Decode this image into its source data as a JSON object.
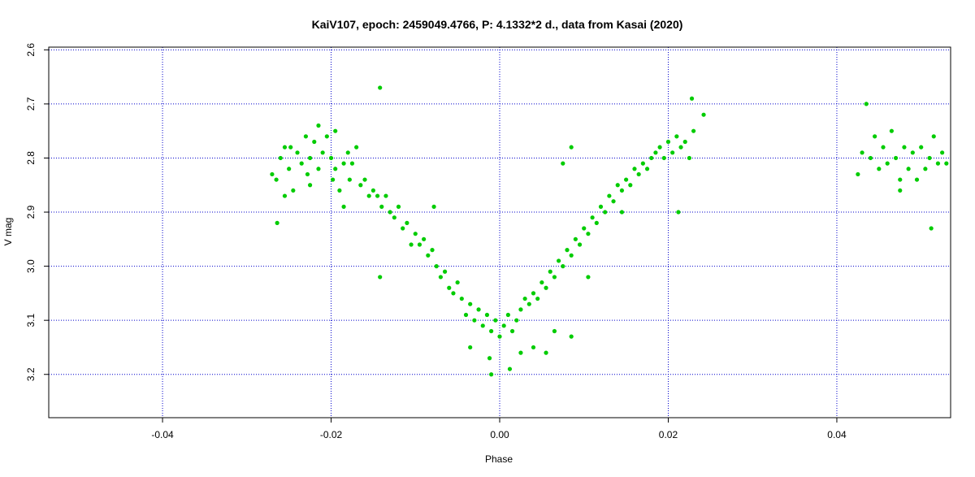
{
  "chart_data": {
    "type": "scatter",
    "title": "KaiV107, epoch: 2459049.4766, P: 4.1332*2 d., data from Kasai (2020)",
    "xlabel": "Phase",
    "ylabel": "V mag",
    "xlim": [
      -0.0535,
      0.0535
    ],
    "ylim": [
      3.28,
      2.595
    ],
    "y_inverted": true,
    "x_ticks": [
      -0.04,
      -0.02,
      0.0,
      0.02,
      0.04
    ],
    "x_tick_labels": [
      "-0.04",
      "-0.02",
      "0.00",
      "0.02",
      "0.04"
    ],
    "y_ticks": [
      2.6,
      2.7,
      2.8,
      2.9,
      3.0,
      3.1,
      3.2
    ],
    "y_tick_labels": [
      "2.6",
      "2.7",
      "2.8",
      "2.9",
      "3.0",
      "3.1",
      "3.2"
    ],
    "grid": true,
    "grid_color": "#0000cc",
    "point_color": "#00cc00",
    "series": [
      {
        "points": [
          [
            -0.027,
            2.83
          ],
          [
            -0.0265,
            2.84
          ],
          [
            -0.026,
            2.8
          ],
          [
            -0.0255,
            2.87
          ],
          [
            -0.025,
            2.82
          ],
          [
            -0.0248,
            2.78
          ],
          [
            -0.0245,
            2.86
          ],
          [
            -0.024,
            2.79
          ],
          [
            -0.0235,
            2.81
          ],
          [
            -0.023,
            2.76
          ],
          [
            -0.0228,
            2.83
          ],
          [
            -0.0225,
            2.8
          ],
          [
            -0.022,
            2.77
          ],
          [
            -0.0215,
            2.82
          ],
          [
            -0.021,
            2.79
          ],
          [
            -0.0205,
            2.76
          ],
          [
            -0.02,
            2.8
          ],
          [
            -0.0198,
            2.84
          ],
          [
            -0.0195,
            2.82
          ],
          [
            -0.019,
            2.86
          ],
          [
            -0.0185,
            2.81
          ],
          [
            -0.018,
            2.79
          ],
          [
            -0.0178,
            2.84
          ],
          [
            -0.0175,
            2.81
          ],
          [
            -0.017,
            2.78
          ],
          [
            -0.0165,
            2.85
          ],
          [
            -0.016,
            2.84
          ],
          [
            -0.0155,
            2.87
          ],
          [
            -0.0264,
            2.92
          ],
          [
            -0.0255,
            2.78
          ],
          [
            -0.0225,
            2.85
          ],
          [
            -0.0215,
            2.74
          ],
          [
            -0.0195,
            2.75
          ],
          [
            -0.0185,
            2.89
          ],
          [
            -0.015,
            2.86
          ],
          [
            -0.0145,
            2.87
          ],
          [
            -0.014,
            2.89
          ],
          [
            -0.0142,
            2.67
          ],
          [
            -0.0135,
            2.87
          ],
          [
            -0.013,
            2.9
          ],
          [
            -0.0125,
            2.91
          ],
          [
            -0.012,
            2.89
          ],
          [
            -0.0115,
            2.93
          ],
          [
            -0.011,
            2.92
          ],
          [
            -0.0105,
            2.96
          ],
          [
            -0.01,
            2.94
          ],
          [
            -0.0095,
            2.96
          ],
          [
            -0.009,
            2.95
          ],
          [
            -0.0085,
            2.98
          ],
          [
            -0.008,
            2.97
          ],
          [
            -0.0075,
            3.0
          ],
          [
            -0.007,
            3.02
          ],
          [
            -0.0065,
            3.01
          ],
          [
            -0.006,
            3.04
          ],
          [
            -0.0055,
            3.05
          ],
          [
            -0.005,
            3.03
          ],
          [
            -0.0045,
            3.06
          ],
          [
            -0.004,
            3.09
          ],
          [
            -0.0035,
            3.07
          ],
          [
            -0.003,
            3.1
          ],
          [
            -0.0025,
            3.08
          ],
          [
            -0.002,
            3.11
          ],
          [
            -0.0015,
            3.09
          ],
          [
            -0.001,
            3.12
          ],
          [
            -0.0005,
            3.1
          ],
          [
            0.0,
            3.13
          ],
          [
            0.0005,
            3.11
          ],
          [
            0.001,
            3.09
          ],
          [
            0.0015,
            3.12
          ],
          [
            0.002,
            3.1
          ],
          [
            -0.0142,
            3.02
          ],
          [
            -0.0078,
            2.89
          ],
          [
            -0.0035,
            3.15
          ],
          [
            -0.0012,
            3.17
          ],
          [
            -0.001,
            3.2
          ],
          [
            0.0012,
            3.19
          ],
          [
            0.0025,
            3.08
          ],
          [
            0.003,
            3.06
          ],
          [
            0.0035,
            3.07
          ],
          [
            0.004,
            3.05
          ],
          [
            0.0045,
            3.06
          ],
          [
            0.005,
            3.03
          ],
          [
            0.0055,
            3.04
          ],
          [
            0.006,
            3.01
          ],
          [
            0.0065,
            3.02
          ],
          [
            0.007,
            2.99
          ],
          [
            0.0075,
            3.0
          ],
          [
            0.008,
            2.97
          ],
          [
            0.0085,
            2.98
          ],
          [
            0.009,
            2.95
          ],
          [
            0.0095,
            2.96
          ],
          [
            0.01,
            2.93
          ],
          [
            0.0105,
            2.94
          ],
          [
            0.011,
            2.91
          ],
          [
            0.0115,
            2.92
          ],
          [
            0.012,
            2.89
          ],
          [
            0.0125,
            2.9
          ],
          [
            0.013,
            2.87
          ],
          [
            0.0135,
            2.88
          ],
          [
            0.014,
            2.85
          ],
          [
            0.0145,
            2.86
          ],
          [
            0.015,
            2.84
          ],
          [
            0.0155,
            2.85
          ],
          [
            0.016,
            2.82
          ],
          [
            0.0165,
            2.83
          ],
          [
            0.017,
            2.81
          ],
          [
            0.0175,
            2.82
          ],
          [
            0.018,
            2.8
          ],
          [
            0.0185,
            2.79
          ],
          [
            0.019,
            2.78
          ],
          [
            0.0195,
            2.8
          ],
          [
            0.02,
            2.77
          ],
          [
            0.0205,
            2.79
          ],
          [
            0.021,
            2.76
          ],
          [
            0.0215,
            2.78
          ],
          [
            0.022,
            2.77
          ],
          [
            0.0225,
            2.8
          ],
          [
            0.023,
            2.75
          ],
          [
            0.0242,
            2.72
          ],
          [
            0.0228,
            2.69
          ],
          [
            0.0212,
            2.9
          ],
          [
            0.0075,
            2.81
          ],
          [
            0.0085,
            2.78
          ],
          [
            0.0055,
            3.16
          ],
          [
            0.0025,
            3.16
          ],
          [
            0.004,
            3.15
          ],
          [
            0.0085,
            3.13
          ],
          [
            0.0065,
            3.12
          ],
          [
            0.0105,
            3.02
          ],
          [
            0.0145,
            2.9
          ],
          [
            0.0425,
            2.83
          ],
          [
            0.043,
            2.79
          ],
          [
            0.0435,
            2.7
          ],
          [
            0.044,
            2.8
          ],
          [
            0.0445,
            2.76
          ],
          [
            0.045,
            2.82
          ],
          [
            0.0455,
            2.78
          ],
          [
            0.046,
            2.81
          ],
          [
            0.0465,
            2.75
          ],
          [
            0.047,
            2.8
          ],
          [
            0.0475,
            2.84
          ],
          [
            0.048,
            2.78
          ],
          [
            0.0485,
            2.82
          ],
          [
            0.049,
            2.79
          ],
          [
            0.0495,
            2.84
          ],
          [
            0.05,
            2.78
          ],
          [
            0.0505,
            2.82
          ],
          [
            0.051,
            2.8
          ],
          [
            0.0515,
            2.76
          ],
          [
            0.052,
            2.81
          ],
          [
            0.0525,
            2.79
          ],
          [
            0.053,
            2.81
          ],
          [
            0.0512,
            2.93
          ],
          [
            0.0475,
            2.86
          ]
        ]
      }
    ]
  }
}
